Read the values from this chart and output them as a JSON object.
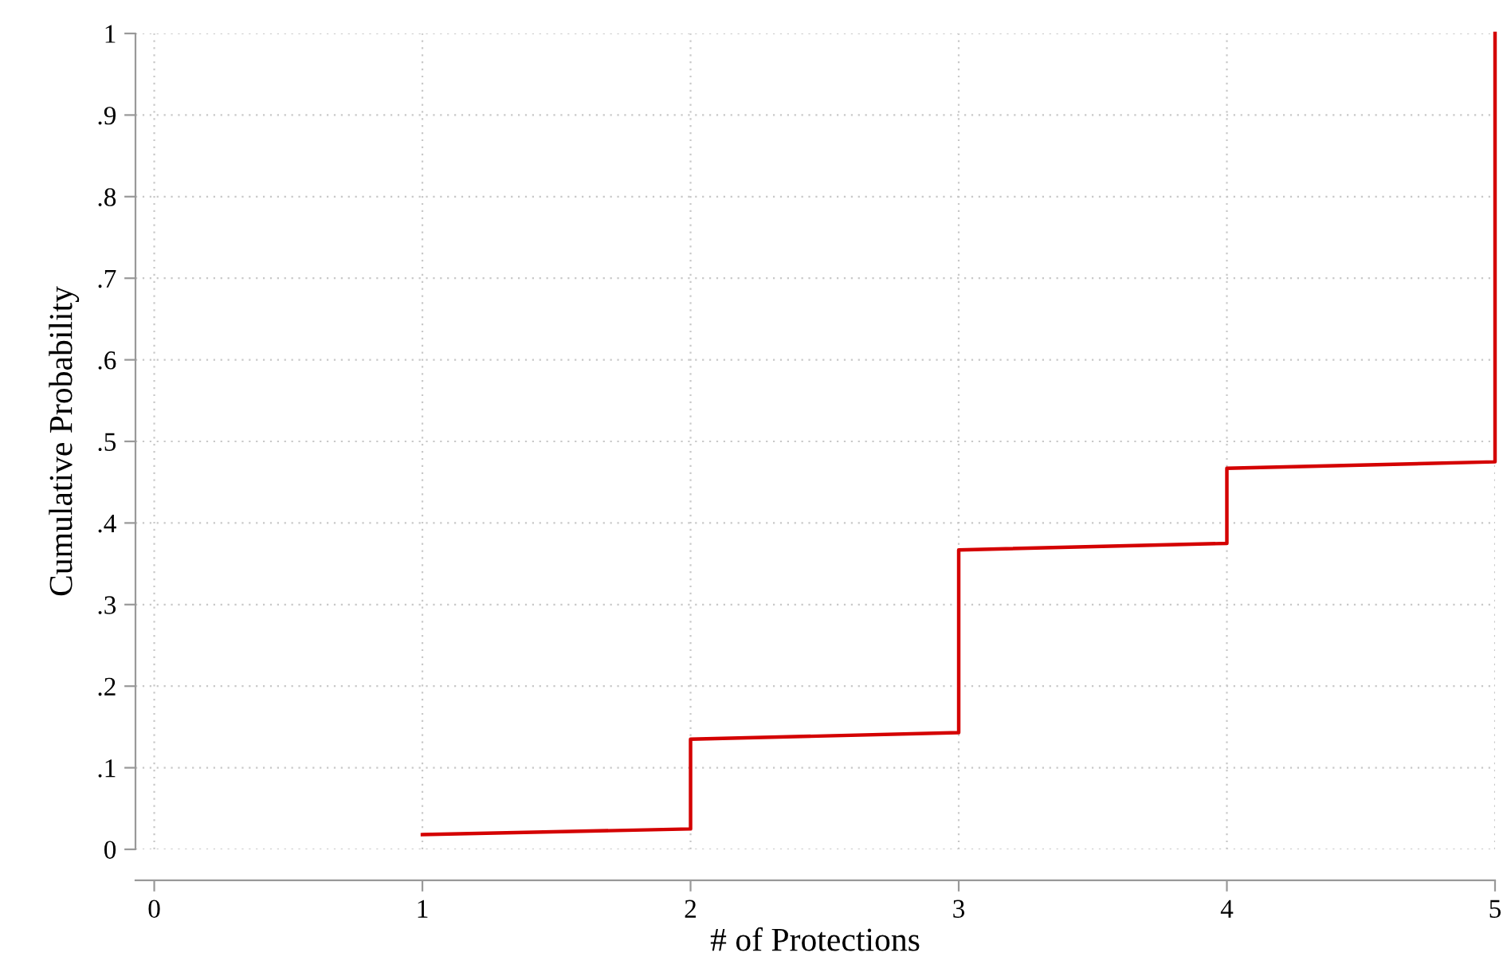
{
  "chart_data": {
    "type": "line",
    "xlabel": "# of Protections",
    "ylabel": "Cumulative Probability",
    "series": [
      {
        "color": "#d40000",
        "x": [
          1,
          2,
          2,
          3,
          3,
          4,
          4,
          5,
          5
        ],
        "values": [
          0.018,
          0.025,
          0.135,
          0.143,
          0.367,
          0.375,
          0.467,
          0.475,
          1.0
        ]
      }
    ],
    "xlim": [
      -0.07,
      5
    ],
    "xticks": [
      0,
      1,
      2,
      3,
      4,
      5
    ],
    "ylim": [
      0,
      1
    ],
    "yticks": [
      0,
      {
        "value": 0.1,
        "label": ".1"
      },
      {
        "value": 0.2,
        "label": ".2"
      },
      {
        "value": 0.3,
        "label": ".3"
      },
      {
        "value": 0.4,
        "label": ".4"
      },
      {
        "value": 0.5,
        "label": ".5"
      },
      {
        "value": 0.6,
        "label": ".6"
      },
      {
        "value": 0.7,
        "label": ".7"
      },
      {
        "value": 0.8,
        "label": ".8"
      },
      {
        "value": 0.9,
        "label": ".9"
      },
      1
    ],
    "grid": true,
    "marker": "none",
    "line_style": "solid"
  }
}
